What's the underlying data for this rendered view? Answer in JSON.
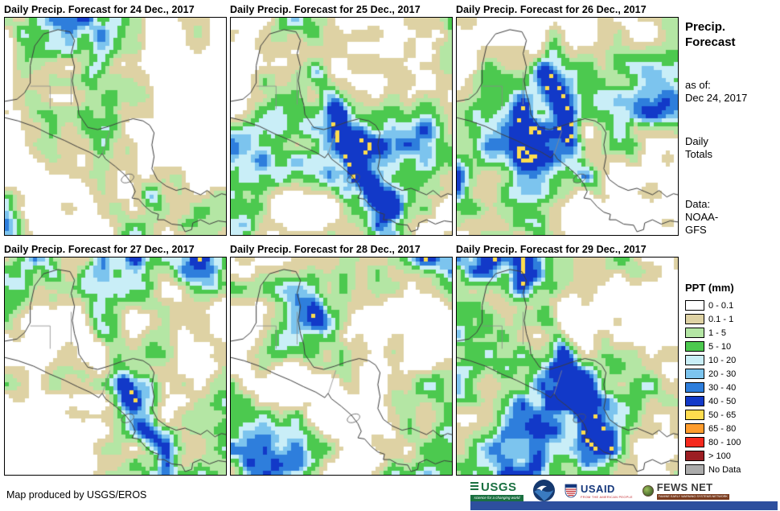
{
  "panels": [
    {
      "title": "Daily Precip. Forecast for 24 Dec., 2017"
    },
    {
      "title": "Daily Precip. Forecast for 25 Dec., 2017"
    },
    {
      "title": "Daily Precip. Forecast for 26 Dec., 2017"
    },
    {
      "title": "Daily Precip. Forecast for 27 Dec., 2017"
    },
    {
      "title": "Daily Precip. Forecast for 28 Dec., 2017"
    },
    {
      "title": "Daily Precip. Forecast for 29 Dec., 2017"
    }
  ],
  "sidebar": {
    "title_line1": "Precip.",
    "title_line2": "Forecast",
    "asof_label": "as of:",
    "asof_date": "Dec 24, 2017",
    "totals_line1": "Daily",
    "totals_line2": "Totals",
    "data_label": "Data:",
    "data_line1": "NOAA-",
    "data_line2": "GFS",
    "legend_title": "PPT (mm)",
    "legend": [
      {
        "label": "0 - 0.1",
        "color": "#FFFFFF"
      },
      {
        "label": "0.1 - 1",
        "color": "#DED2A4"
      },
      {
        "label": "1 - 5",
        "color": "#B4E6A4"
      },
      {
        "label": "5 - 10",
        "color": "#4CC94F"
      },
      {
        "label": "10 - 20",
        "color": "#C9EEF7"
      },
      {
        "label": "20 - 30",
        "color": "#7CC4EE"
      },
      {
        "label": "30 - 40",
        "color": "#2E7EDC"
      },
      {
        "label": "40 - 50",
        "color": "#1239C8"
      },
      {
        "label": "50 - 65",
        "color": "#FFDC4E"
      },
      {
        "label": "65 - 80",
        "color": "#FF9D2E"
      },
      {
        "label": "80 - 100",
        "color": "#F5291D"
      },
      {
        "label": "> 100",
        "color": "#9C1E23"
      },
      {
        "label": "No Data",
        "color": "#ABABAB"
      }
    ]
  },
  "footer": {
    "credit": "Map produced by USGS/EROS",
    "usgs_text": "USGS",
    "usgs_tagline": "science for a changing world",
    "usaid_text": "USAID",
    "usaid_tagline": "FROM THE AMERICAN PEOPLE",
    "fews_text": "FEWS NET",
    "fews_tagline": "FAMINE EARLY WARNING SYSTEMS NETWORK"
  }
}
